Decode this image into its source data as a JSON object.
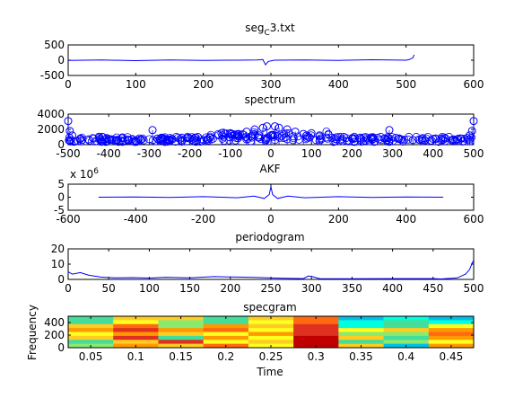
{
  "window": {
    "background": "#ffffff"
  },
  "colors": {
    "line": "#0000ff",
    "axis": "#000000"
  },
  "chart_data": [
    {
      "type": "line",
      "title_main": "seg",
      "title_sub": "C",
      "title_rest": "3.txt",
      "xlim": [
        0,
        600
      ],
      "ylim": [
        -500,
        500
      ],
      "xticks": [
        "0",
        "100",
        "200",
        "300",
        "400",
        "500",
        "600"
      ],
      "yticks": [
        "500",
        "0",
        "-500"
      ],
      "series": [
        {
          "x": [
            0,
            50,
            100,
            150,
            200,
            250,
            280,
            288,
            292,
            296,
            305,
            350,
            400,
            450,
            500,
            505,
            510,
            512
          ],
          "y": [
            -10,
            5,
            -15,
            10,
            -5,
            0,
            5,
            20,
            -150,
            -40,
            0,
            10,
            -5,
            15,
            0,
            20,
            80,
            180
          ]
        }
      ]
    },
    {
      "type": "scatter",
      "title": "spectrum",
      "xlim": [
        -500,
        500
      ],
      "ylim": [
        0,
        4000
      ],
      "xticks": [
        "-500",
        "-400",
        "-300",
        "-200",
        "-100",
        "0",
        "100",
        "200",
        "300",
        "400",
        "500"
      ],
      "yticks": [
        "4000",
        "2000",
        "0"
      ],
      "series": [
        {
          "x": [
            -500,
            -496,
            -490,
            -470,
            -450,
            -420,
            -400,
            -380,
            -350,
            -320,
            -292,
            -280,
            -250,
            -220,
            -200,
            -180,
            -150,
            -120,
            -100,
            -80,
            -60,
            -40,
            -20,
            -10,
            0,
            10,
            20,
            40,
            60,
            80,
            100,
            120,
            150,
            180,
            200,
            220,
            250,
            280,
            292,
            320,
            350,
            380,
            400,
            420,
            450,
            470,
            490,
            496,
            500
          ],
          "y": [
            3100,
            1800,
            1200,
            800,
            700,
            600,
            750,
            550,
            600,
            700,
            1900,
            800,
            650,
            900,
            800,
            1000,
            900,
            1200,
            1500,
            1400,
            1700,
            2000,
            2200,
            2400,
            1200,
            2400,
            2200,
            2000,
            1700,
            1400,
            1500,
            1200,
            900,
            1000,
            800,
            900,
            650,
            800,
            1900,
            700,
            600,
            550,
            750,
            600,
            700,
            800,
            1200,
            1800,
            3100
          ]
        }
      ]
    },
    {
      "type": "line",
      "title": "AKF",
      "exponent_label": "x 10",
      "exponent": "6",
      "xlim": [
        -600,
        600
      ],
      "ylim": [
        -5,
        5
      ],
      "xticks": [
        "-600",
        "-400",
        "-200",
        "0",
        "200",
        "400",
        "600"
      ],
      "yticks": [
        "5",
        "0",
        "-5"
      ],
      "series": [
        {
          "x": [
            -510,
            -400,
            -300,
            -200,
            -100,
            -50,
            -20,
            -5,
            0,
            5,
            20,
            50,
            100,
            200,
            300,
            400,
            510
          ],
          "y": [
            0,
            0.1,
            -0.1,
            0.2,
            -0.2,
            0.4,
            -0.5,
            1.0,
            4.0,
            1.0,
            -0.5,
            0.4,
            -0.2,
            0.2,
            -0.1,
            0.1,
            0
          ]
        }
      ]
    },
    {
      "type": "line",
      "title": "periodogram",
      "xlim": [
        0,
        500
      ],
      "ylim": [
        0,
        20
      ],
      "xticks": [
        "0",
        "50",
        "100",
        "150",
        "200",
        "250",
        "300",
        "350",
        "400",
        "450",
        "500"
      ],
      "yticks": [
        "20",
        "10",
        "0"
      ],
      "series": [
        {
          "x": [
            0,
            5,
            15,
            25,
            40,
            60,
            80,
            100,
            120,
            150,
            180,
            200,
            230,
            260,
            290,
            296,
            300,
            310,
            350,
            400,
            450,
            460,
            480,
            490,
            495,
            498,
            500
          ],
          "y": [
            5,
            3.5,
            4.5,
            2.8,
            1.5,
            1.0,
            1.2,
            0.9,
            1.4,
            1.0,
            1.8,
            1.6,
            1.3,
            0.8,
            0.5,
            2.2,
            2.0,
            0.5,
            0.4,
            0.5,
            0.5,
            0.3,
            1.0,
            3.5,
            6.5,
            10.5,
            12.5
          ]
        }
      ]
    },
    {
      "type": "heatmap",
      "title": "specgram",
      "xlabel": "Time",
      "ylabel": "Frequency",
      "xlim": [
        0.025,
        0.475
      ],
      "ylim": [
        0,
        500
      ],
      "xticks": [
        "0.05",
        "0.1",
        "0.15",
        "0.2",
        "0.25",
        "0.3",
        "0.35",
        "0.4",
        "0.45"
      ],
      "yticks": [
        "400",
        "200",
        "0"
      ],
      "time_bins": [
        0.05,
        0.1,
        0.15,
        0.2,
        0.25,
        0.3,
        0.35,
        0.4,
        0.45
      ],
      "colormap": "jet",
      "colors": [
        "#00bfe6",
        "#44dd99",
        "#ffcc22",
        "#ff6a10",
        "#e03020",
        "#c00000",
        "#00ffe0",
        "#ffff20",
        "#ff9900",
        "#8aea70"
      ],
      "rows_top_to_bottom": [
        [
          1,
          2,
          2,
          1,
          2,
          3,
          0,
          6,
          0
        ],
        [
          1,
          7,
          9,
          1,
          7,
          3,
          6,
          1,
          6
        ],
        [
          2,
          3,
          9,
          8,
          2,
          4,
          6,
          1,
          7
        ],
        [
          8,
          4,
          8,
          3,
          7,
          4,
          7,
          2,
          8
        ],
        [
          7,
          8,
          2,
          7,
          8,
          4,
          9,
          9,
          3
        ],
        [
          2,
          4,
          1,
          8,
          7,
          5,
          2,
          1,
          8
        ],
        [
          1,
          2,
          4,
          7,
          2,
          5,
          1,
          9,
          7
        ],
        [
          9,
          8,
          2,
          3,
          7,
          5,
          2,
          0,
          8
        ]
      ]
    }
  ]
}
